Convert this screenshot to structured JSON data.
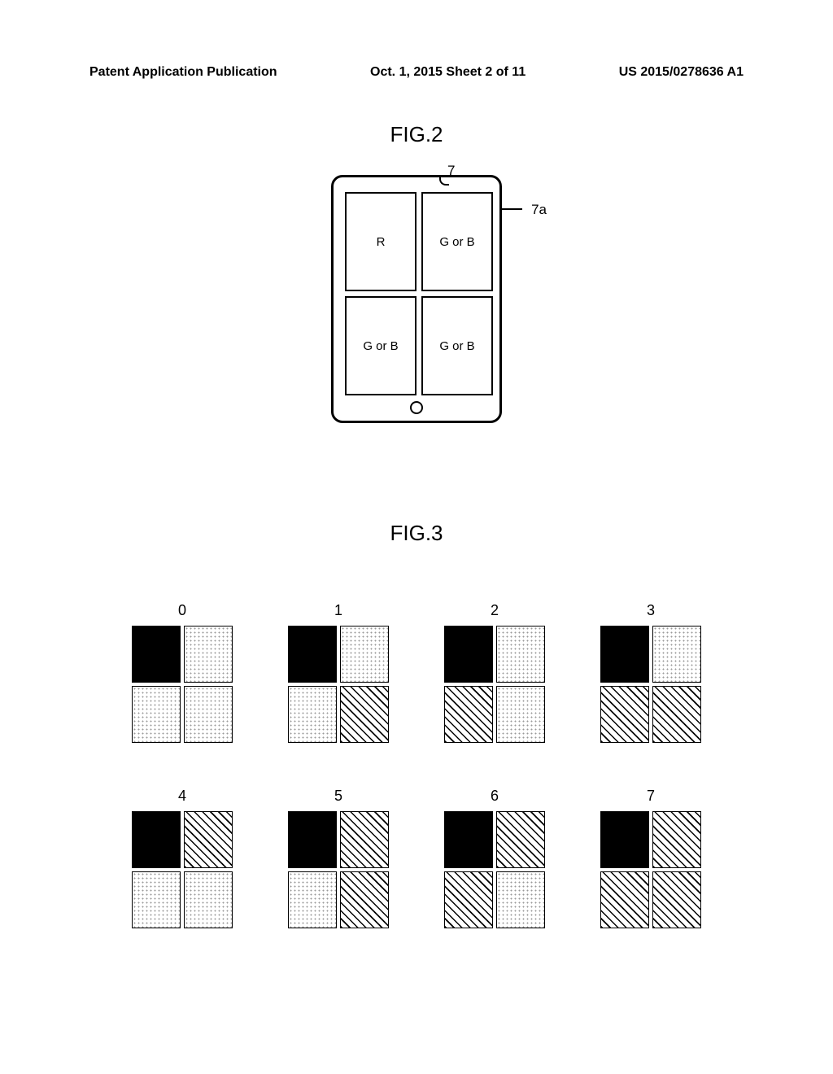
{
  "header": {
    "left": "Patent Application Publication",
    "center": "Oct. 1, 2015  Sheet 2 of 11",
    "right": "US 2015/0278636 A1"
  },
  "fig2": {
    "title": "FIG.2",
    "callout_7": "7",
    "callout_7a": "7a",
    "cells": [
      "R",
      "G or B",
      "G or B",
      "G or B"
    ]
  },
  "fig3": {
    "title": "FIG.3",
    "labels": [
      "0",
      "1",
      "2",
      "3",
      "4",
      "5",
      "6",
      "7"
    ],
    "patterns": [
      [
        "black",
        "dots",
        "dots",
        "dots"
      ],
      [
        "black",
        "dots",
        "dots",
        "hatch"
      ],
      [
        "black",
        "dots",
        "hatch",
        "dots"
      ],
      [
        "black",
        "dots",
        "hatch",
        "hatch"
      ],
      [
        "black",
        "hatch",
        "dots",
        "dots"
      ],
      [
        "black",
        "hatch",
        "dots",
        "hatch"
      ],
      [
        "black",
        "hatch",
        "hatch",
        "dots"
      ],
      [
        "black",
        "hatch",
        "hatch",
        "hatch"
      ]
    ]
  },
  "colors": {
    "text": "#000000",
    "bg": "#ffffff",
    "dot": "#999999"
  }
}
